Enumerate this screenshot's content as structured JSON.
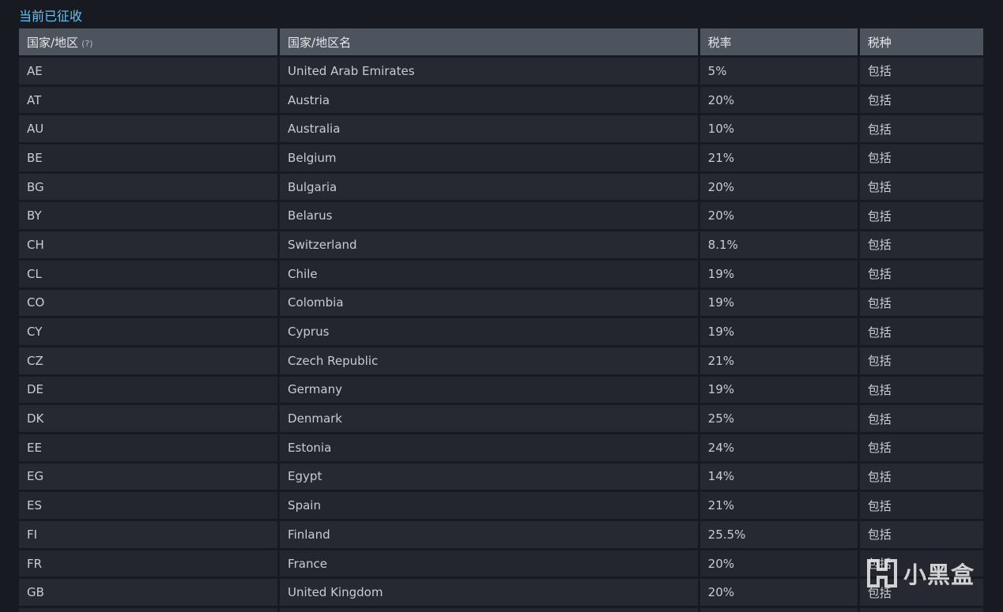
{
  "section_title": "当前已征收",
  "table": {
    "headers": {
      "code": "国家/地区",
      "code_hint": "(?)",
      "name": "国家/地区名",
      "rate": "税率",
      "type": "税种"
    },
    "rows": [
      {
        "code": "AE",
        "name": "United Arab Emirates",
        "rate": "5%",
        "type": "包括"
      },
      {
        "code": "AT",
        "name": "Austria",
        "rate": "20%",
        "type": "包括"
      },
      {
        "code": "AU",
        "name": "Australia",
        "rate": "10%",
        "type": "包括"
      },
      {
        "code": "BE",
        "name": "Belgium",
        "rate": "21%",
        "type": "包括"
      },
      {
        "code": "BG",
        "name": "Bulgaria",
        "rate": "20%",
        "type": "包括"
      },
      {
        "code": "BY",
        "name": "Belarus",
        "rate": "20%",
        "type": "包括"
      },
      {
        "code": "CH",
        "name": "Switzerland",
        "rate": "8.1%",
        "type": "包括"
      },
      {
        "code": "CL",
        "name": "Chile",
        "rate": "19%",
        "type": "包括"
      },
      {
        "code": "CO",
        "name": "Colombia",
        "rate": "19%",
        "type": "包括"
      },
      {
        "code": "CY",
        "name": "Cyprus",
        "rate": "19%",
        "type": "包括"
      },
      {
        "code": "CZ",
        "name": "Czech Republic",
        "rate": "21%",
        "type": "包括"
      },
      {
        "code": "DE",
        "name": "Germany",
        "rate": "19%",
        "type": "包括"
      },
      {
        "code": "DK",
        "name": "Denmark",
        "rate": "25%",
        "type": "包括"
      },
      {
        "code": "EE",
        "name": "Estonia",
        "rate": "24%",
        "type": "包括"
      },
      {
        "code": "EG",
        "name": "Egypt",
        "rate": "14%",
        "type": "包括"
      },
      {
        "code": "ES",
        "name": "Spain",
        "rate": "21%",
        "type": "包括"
      },
      {
        "code": "FI",
        "name": "Finland",
        "rate": "25.5%",
        "type": "包括"
      },
      {
        "code": "FR",
        "name": "France",
        "rate": "20%",
        "type": "包括"
      },
      {
        "code": "GB",
        "name": "United Kingdom",
        "rate": "20%",
        "type": "包括"
      },
      {
        "code": "",
        "name": "",
        "rate": "",
        "type": ""
      }
    ]
  },
  "watermark": {
    "text": "小黑盒",
    "icon": "heybox-logo-icon"
  }
}
